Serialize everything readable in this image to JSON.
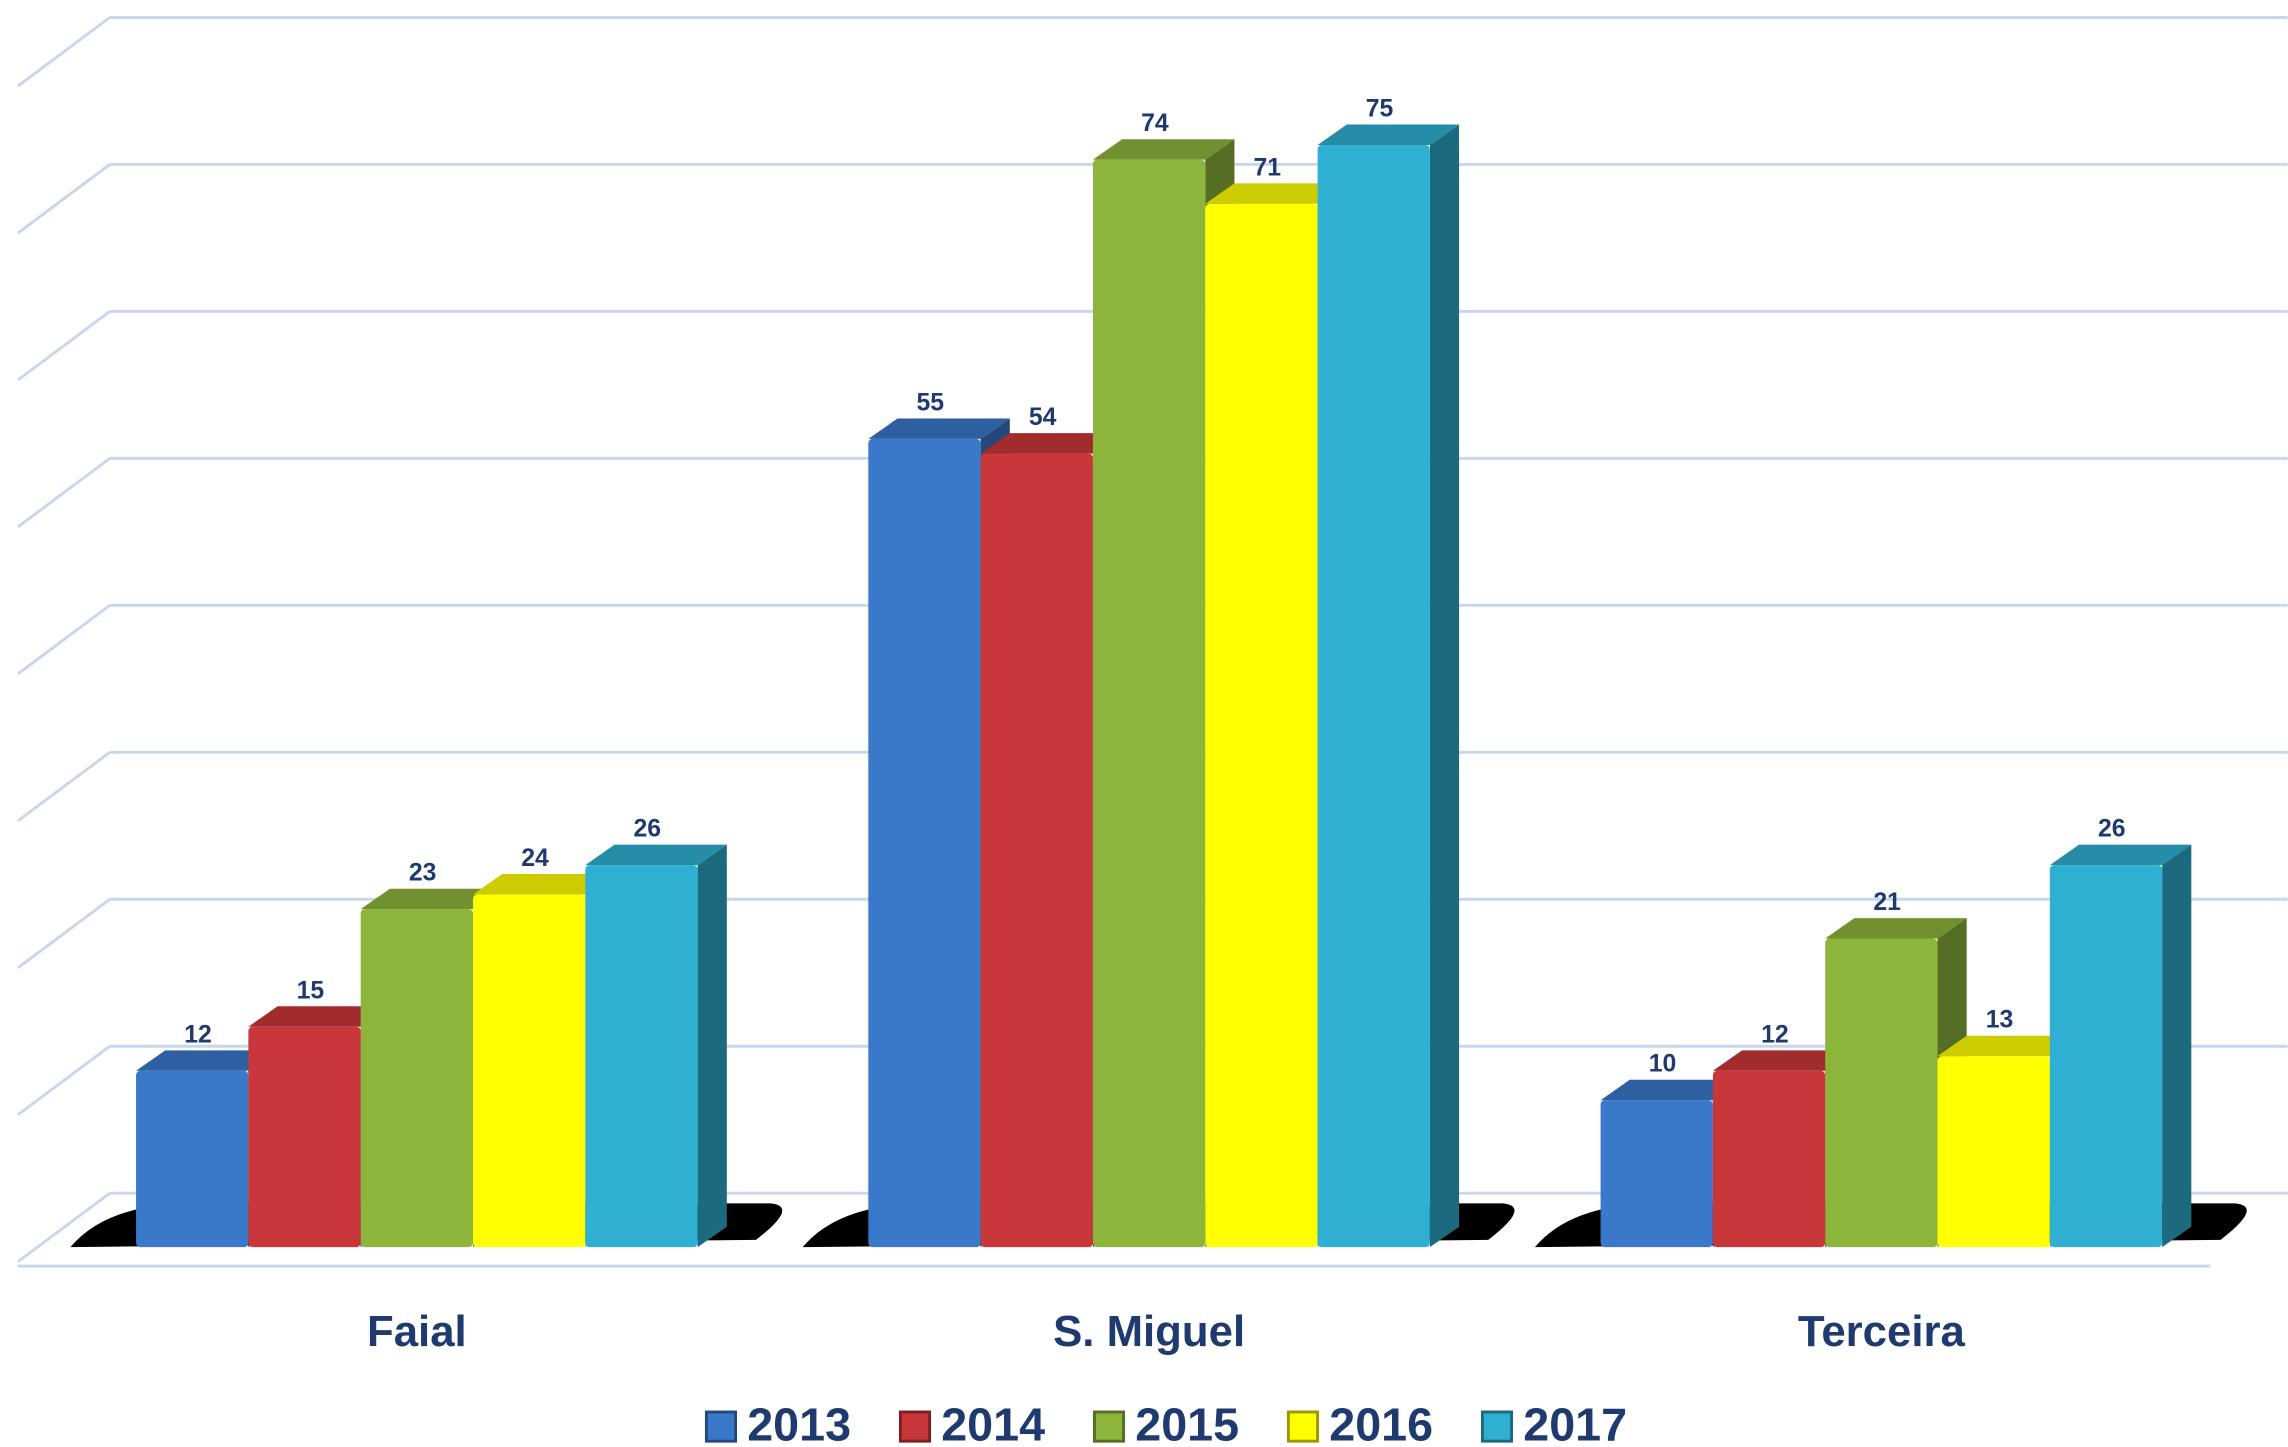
{
  "chart_data": {
    "type": "bar3d",
    "categories": [
      "Faial",
      "S. Miguel",
      "Terceira"
    ],
    "series": [
      {
        "name": "2013",
        "color": "#3a78c9",
        "values": [
          12,
          55,
          10
        ]
      },
      {
        "name": "2014",
        "color": "#c9373a",
        "values": [
          15,
          54,
          12
        ]
      },
      {
        "name": "2015",
        "color": "#8db53c",
        "values": [
          23,
          74,
          21
        ]
      },
      {
        "name": "2016",
        "color": "#ffff00",
        "values": [
          24,
          71,
          13
        ]
      },
      {
        "name": "2017",
        "color": "#2fb0d2",
        "values": [
          26,
          75,
          26
        ]
      }
    ],
    "ylim": [
      0,
      80
    ],
    "yticks": [
      0,
      10,
      20,
      30,
      40,
      50,
      60,
      70,
      80
    ],
    "grid": true,
    "legend": "bottom"
  }
}
